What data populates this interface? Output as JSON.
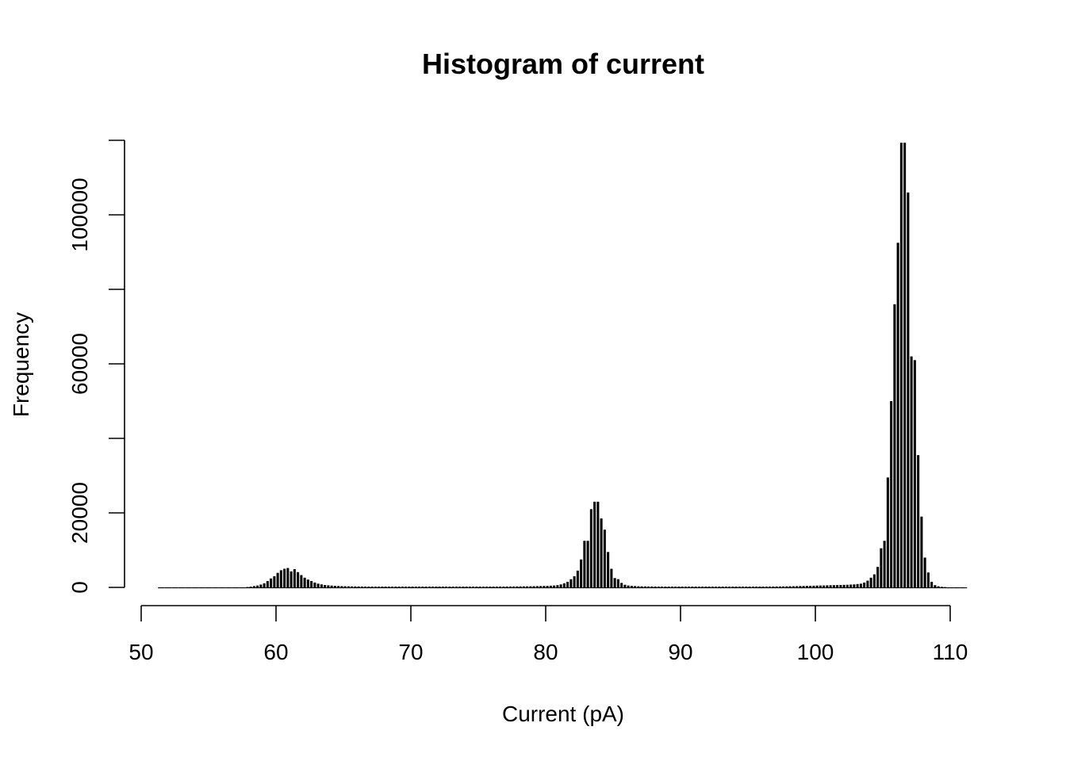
{
  "chart_data": {
    "type": "bar",
    "title": "Histogram of current",
    "xlabel": "Current (pA)",
    "ylabel": "Frequency",
    "xlim": [
      50,
      112
    ],
    "ylim": [
      0,
      120000
    ],
    "x_ticks": [
      50,
      60,
      70,
      80,
      90,
      100,
      110
    ],
    "y_ticks": [
      0,
      20000,
      40000,
      60000,
      80000,
      100000,
      120000
    ],
    "y_tick_labels": [
      "0",
      "20000",
      "",
      "60000",
      "",
      "100000",
      ""
    ],
    "bin_width": 0.25,
    "bin_start": 51.25,
    "bins": [
      [
        51.25,
        0
      ],
      [
        51.5,
        0
      ],
      [
        51.75,
        0
      ],
      [
        52.0,
        0
      ],
      [
        52.25,
        0
      ],
      [
        52.5,
        0
      ],
      [
        52.75,
        0
      ],
      [
        53.0,
        0
      ],
      [
        53.25,
        0
      ],
      [
        53.5,
        0
      ],
      [
        53.75,
        0
      ],
      [
        54.0,
        0
      ],
      [
        54.25,
        0
      ],
      [
        54.5,
        0
      ],
      [
        54.75,
        0
      ],
      [
        55.0,
        0
      ],
      [
        55.25,
        0
      ],
      [
        55.5,
        0
      ],
      [
        55.75,
        0
      ],
      [
        56.0,
        0
      ],
      [
        56.25,
        0
      ],
      [
        56.5,
        0
      ],
      [
        56.75,
        0
      ],
      [
        57.0,
        0
      ],
      [
        57.25,
        0
      ],
      [
        57.5,
        50
      ],
      [
        57.75,
        100
      ],
      [
        58.0,
        200
      ],
      [
        58.25,
        350
      ],
      [
        58.5,
        500
      ],
      [
        58.75,
        750
      ],
      [
        59.0,
        1100
      ],
      [
        59.25,
        1700
      ],
      [
        59.5,
        2400
      ],
      [
        59.75,
        3000
      ],
      [
        60.0,
        3900
      ],
      [
        60.25,
        4600
      ],
      [
        60.5,
        5000
      ],
      [
        60.75,
        5200
      ],
      [
        61.0,
        4300
      ],
      [
        61.25,
        4900
      ],
      [
        61.5,
        4100
      ],
      [
        61.75,
        3300
      ],
      [
        62.0,
        2600
      ],
      [
        62.25,
        2100
      ],
      [
        62.5,
        1700
      ],
      [
        62.75,
        1300
      ],
      [
        63.0,
        1000
      ],
      [
        63.25,
        800
      ],
      [
        63.5,
        650
      ],
      [
        63.75,
        550
      ],
      [
        64.0,
        480
      ],
      [
        64.25,
        420
      ],
      [
        64.5,
        380
      ],
      [
        64.75,
        340
      ],
      [
        65.0,
        310
      ],
      [
        65.25,
        290
      ],
      [
        65.5,
        270
      ],
      [
        65.75,
        260
      ],
      [
        66.0,
        250
      ],
      [
        66.25,
        240
      ],
      [
        66.5,
        230
      ],
      [
        66.75,
        220
      ],
      [
        67.0,
        220
      ],
      [
        67.25,
        220
      ],
      [
        67.5,
        220
      ],
      [
        67.75,
        220
      ],
      [
        68.0,
        220
      ],
      [
        68.25,
        220
      ],
      [
        68.5,
        220
      ],
      [
        68.75,
        220
      ],
      [
        69.0,
        220
      ],
      [
        69.25,
        220
      ],
      [
        69.5,
        220
      ],
      [
        69.75,
        220
      ],
      [
        70.0,
        220
      ],
      [
        70.25,
        220
      ],
      [
        70.5,
        220
      ],
      [
        70.75,
        220
      ],
      [
        71.0,
        220
      ],
      [
        71.25,
        220
      ],
      [
        71.5,
        220
      ],
      [
        71.75,
        220
      ],
      [
        72.0,
        220
      ],
      [
        72.25,
        220
      ],
      [
        72.5,
        220
      ],
      [
        72.75,
        220
      ],
      [
        73.0,
        220
      ],
      [
        73.25,
        220
      ],
      [
        73.5,
        220
      ],
      [
        73.75,
        220
      ],
      [
        74.0,
        220
      ],
      [
        74.25,
        220
      ],
      [
        74.5,
        220
      ],
      [
        74.75,
        220
      ],
      [
        75.0,
        220
      ],
      [
        75.25,
        220
      ],
      [
        75.5,
        220
      ],
      [
        75.75,
        220
      ],
      [
        76.0,
        220
      ],
      [
        76.25,
        220
      ],
      [
        76.5,
        230
      ],
      [
        76.75,
        230
      ],
      [
        77.0,
        240
      ],
      [
        77.25,
        240
      ],
      [
        77.5,
        250
      ],
      [
        77.75,
        260
      ],
      [
        78.0,
        270
      ],
      [
        78.25,
        280
      ],
      [
        78.5,
        290
      ],
      [
        78.75,
        300
      ],
      [
        79.0,
        320
      ],
      [
        79.25,
        340
      ],
      [
        79.5,
        360
      ],
      [
        79.75,
        380
      ],
      [
        80.0,
        400
      ],
      [
        80.25,
        450
      ],
      [
        80.5,
        500
      ],
      [
        80.75,
        600
      ],
      [
        81.0,
        800
      ],
      [
        81.25,
        1100
      ],
      [
        81.5,
        1500
      ],
      [
        81.75,
        2200
      ],
      [
        82.0,
        3000
      ],
      [
        82.25,
        4500
      ],
      [
        82.5,
        7500
      ],
      [
        82.75,
        12500
      ],
      [
        83.0,
        12500
      ],
      [
        83.25,
        21000
      ],
      [
        83.5,
        23000
      ],
      [
        83.75,
        23000
      ],
      [
        84.0,
        18500
      ],
      [
        84.25,
        15500
      ],
      [
        84.5,
        9500
      ],
      [
        84.75,
        5000
      ],
      [
        85.0,
        2500
      ],
      [
        85.25,
        2200
      ],
      [
        85.5,
        1200
      ],
      [
        85.75,
        700
      ],
      [
        86.0,
        500
      ],
      [
        86.25,
        400
      ],
      [
        86.5,
        350
      ],
      [
        86.75,
        300
      ],
      [
        87.0,
        280
      ],
      [
        87.25,
        260
      ],
      [
        87.5,
        250
      ],
      [
        87.75,
        240
      ],
      [
        88.0,
        230
      ],
      [
        88.25,
        220
      ],
      [
        88.5,
        220
      ],
      [
        88.75,
        220
      ],
      [
        89.0,
        220
      ],
      [
        89.25,
        220
      ],
      [
        89.5,
        220
      ],
      [
        89.75,
        220
      ],
      [
        90.0,
        220
      ],
      [
        90.25,
        220
      ],
      [
        90.5,
        220
      ],
      [
        90.75,
        220
      ],
      [
        91.0,
        220
      ],
      [
        91.25,
        220
      ],
      [
        91.5,
        220
      ],
      [
        91.75,
        220
      ],
      [
        92.0,
        220
      ],
      [
        92.25,
        220
      ],
      [
        92.5,
        220
      ],
      [
        92.75,
        220
      ],
      [
        93.0,
        220
      ],
      [
        93.25,
        220
      ],
      [
        93.5,
        220
      ],
      [
        93.75,
        220
      ],
      [
        94.0,
        220
      ],
      [
        94.25,
        220
      ],
      [
        94.5,
        220
      ],
      [
        94.75,
        220
      ],
      [
        95.0,
        220
      ],
      [
        95.25,
        220
      ],
      [
        95.5,
        220
      ],
      [
        95.75,
        220
      ],
      [
        96.0,
        220
      ],
      [
        96.25,
        220
      ],
      [
        96.5,
        230
      ],
      [
        96.75,
        240
      ],
      [
        97.0,
        250
      ],
      [
        97.25,
        260
      ],
      [
        97.5,
        270
      ],
      [
        97.75,
        280
      ],
      [
        98.0,
        300
      ],
      [
        98.25,
        320
      ],
      [
        98.5,
        340
      ],
      [
        98.75,
        360
      ],
      [
        99.0,
        380
      ],
      [
        99.25,
        400
      ],
      [
        99.5,
        420
      ],
      [
        99.75,
        450
      ],
      [
        100.0,
        480
      ],
      [
        100.25,
        500
      ],
      [
        100.5,
        520
      ],
      [
        100.75,
        550
      ],
      [
        101.0,
        580
      ],
      [
        101.25,
        600
      ],
      [
        101.5,
        620
      ],
      [
        101.75,
        650
      ],
      [
        102.0,
        680
      ],
      [
        102.25,
        700
      ],
      [
        102.5,
        750
      ],
      [
        102.75,
        800
      ],
      [
        103.0,
        900
      ],
      [
        103.25,
        1000
      ],
      [
        103.5,
        1300
      ],
      [
        103.75,
        1800
      ],
      [
        104.0,
        2600
      ],
      [
        104.25,
        3500
      ],
      [
        104.5,
        5500
      ],
      [
        104.75,
        10500
      ],
      [
        105.0,
        12500
      ],
      [
        105.25,
        29500
      ],
      [
        105.5,
        50000
      ],
      [
        105.75,
        76000
      ],
      [
        106.0,
        92500
      ],
      [
        106.25,
        121500
      ],
      [
        106.5,
        122000
      ],
      [
        106.75,
        106000
      ],
      [
        107.0,
        62000
      ],
      [
        107.25,
        61000
      ],
      [
        107.5,
        35500
      ],
      [
        107.75,
        19000
      ],
      [
        108.0,
        8000
      ],
      [
        108.25,
        4000
      ],
      [
        108.5,
        1500
      ],
      [
        108.75,
        600
      ],
      [
        109.0,
        300
      ],
      [
        109.25,
        150
      ],
      [
        109.5,
        80
      ],
      [
        109.75,
        40
      ],
      [
        110.0,
        20
      ],
      [
        110.25,
        10
      ],
      [
        110.5,
        0
      ],
      [
        110.75,
        0
      ],
      [
        111.0,
        0
      ]
    ]
  }
}
